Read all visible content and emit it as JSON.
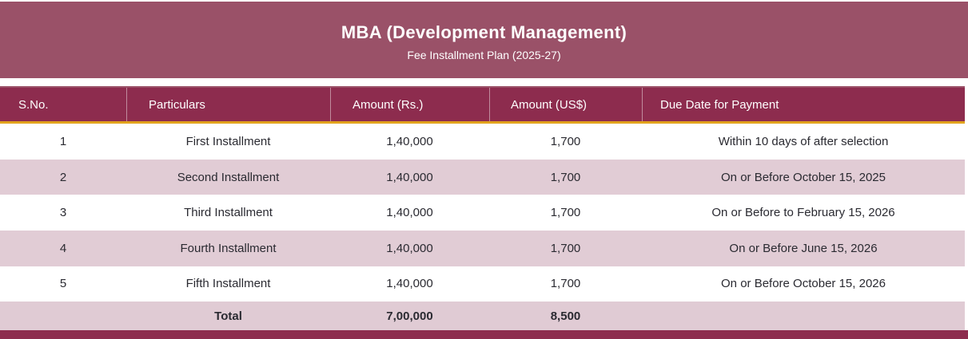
{
  "banner": {
    "title": "MBA (Development Management)",
    "subtitle": "Fee Installment Plan (2025-27)"
  },
  "table": {
    "columns": [
      {
        "label": "S.No."
      },
      {
        "label": "Particulars"
      },
      {
        "label": "Amount (Rs.)"
      },
      {
        "label": "Amount (US$)"
      },
      {
        "label": "Due Date for Payment"
      }
    ],
    "rows": [
      {
        "sno": "1",
        "particulars": "First Installment",
        "amount_rs": "1,40,000",
        "amount_usd": "1,700",
        "due_date": "Within 10 days of after selection"
      },
      {
        "sno": "2",
        "particulars": "Second Installment",
        "amount_rs": "1,40,000",
        "amount_usd": "1,700",
        "due_date": "On or Before October 15, 2025"
      },
      {
        "sno": "3",
        "particulars": "Third Installment",
        "amount_rs": "1,40,000",
        "amount_usd": "1,700",
        "due_date": "On or Before to February 15, 2026"
      },
      {
        "sno": "4",
        "particulars": "Fourth Installment",
        "amount_rs": "1,40,000",
        "amount_usd": "1,700",
        "due_date": "On or Before June 15, 2026"
      },
      {
        "sno": "5",
        "particulars": "Fifth Installment",
        "amount_rs": "1,40,000",
        "amount_usd": "1,700",
        "due_date": "On or Before October 15, 2026"
      }
    ],
    "total": {
      "label": "Total",
      "amount_rs": "7,00,000",
      "amount_usd": "8,500"
    }
  },
  "colors": {
    "banner_bg": "#9A5168",
    "header_bg": "#8D2C4E",
    "accent_line": "#E2A31D",
    "row_alt_bg": "#E1CCD5",
    "total_bg": "#E0CBD4",
    "footer_bar": "#8D2C4E",
    "body_text": "#2A2A31"
  }
}
